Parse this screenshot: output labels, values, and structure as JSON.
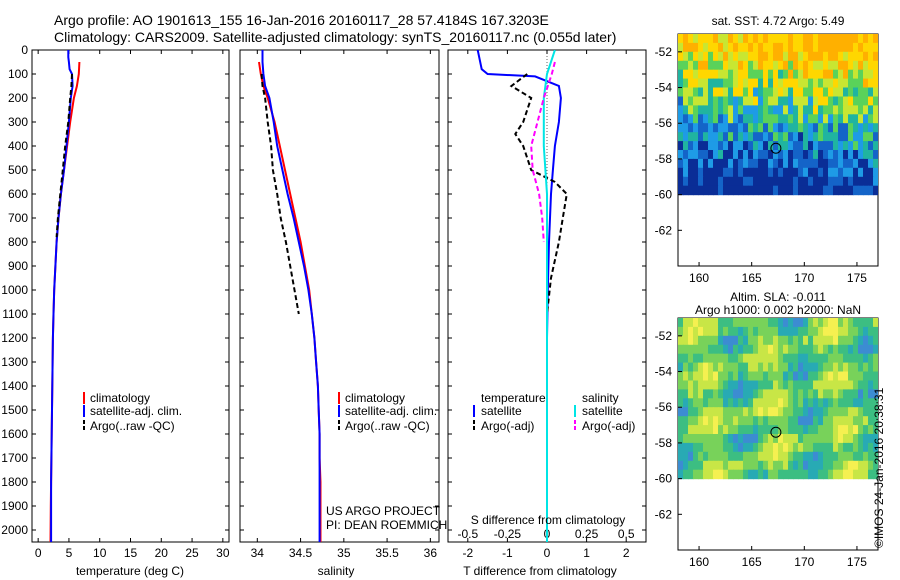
{
  "header": {
    "line1": "Argo profile: AO 1901613_155 16-Jan-2016 20160117_28 57.4184S 167.3203E",
    "line2": "Climatology: CARS2009. Satellite-adjusted climatology: synTS_20160117.nc (0.055d later)"
  },
  "stamp": "©IMOS 24-Jan-2016 20:38:31",
  "colors": {
    "climatology": "#ff0000",
    "satellite": "#0000ff",
    "argo": "#000000",
    "salinity_satellite": "#00e5e5",
    "salinity_argo": "#ff00ff"
  },
  "chart_data": [
    {
      "type": "line",
      "id": "temperature",
      "xlabel": "temperature (deg C)",
      "ylabel": "",
      "xlim": [
        -1,
        31
      ],
      "ylim": [
        2050,
        0
      ],
      "xticks": [
        0,
        5,
        10,
        15,
        20,
        25,
        30
      ],
      "yticks": [
        0,
        100,
        200,
        300,
        400,
        500,
        600,
        700,
        800,
        900,
        1000,
        1100,
        1200,
        1300,
        1400,
        1500,
        1600,
        1700,
        1800,
        1900,
        2000
      ],
      "legend": [
        "climatology",
        "satellite-adj. clim.",
        "Argo(..raw -QC)"
      ],
      "legend_placement": "lower-right",
      "series": [
        {
          "name": "climatology",
          "color": "#ff0000",
          "x": [
            6.7,
            6.6,
            6.3,
            5.8,
            5.2,
            4.7,
            4.2,
            3.7,
            3.3,
            3.0,
            2.8,
            2.6,
            2.5,
            2.4,
            2.35,
            2.3,
            2.25,
            2.2,
            2.15,
            2.1,
            2.05,
            2.0
          ],
          "y": [
            50,
            100,
            150,
            200,
            300,
            400,
            500,
            600,
            700,
            800,
            900,
            1000,
            1100,
            1200,
            1300,
            1400,
            1500,
            1600,
            1700,
            1800,
            1900,
            2050
          ]
        },
        {
          "name": "satellite-adj. clim.",
          "color": "#0000ff",
          "x": [
            4.9,
            4.9,
            5.0,
            5.1,
            5.5,
            5.6,
            5.3,
            5.0,
            4.6,
            4.2,
            3.7,
            3.3,
            3.0,
            2.8,
            2.6,
            2.5,
            2.4,
            2.35,
            2.3,
            2.25,
            2.2,
            2.15,
            2.1,
            2.1
          ],
          "y": [
            0,
            30,
            50,
            80,
            100,
            150,
            200,
            300,
            400,
            500,
            600,
            700,
            800,
            900,
            1000,
            1100,
            1200,
            1300,
            1400,
            1500,
            1600,
            1700,
            1800,
            2050
          ]
        },
        {
          "name": "Argo(..raw -QC)",
          "color": "#000000",
          "x": [
            5.5,
            5.4,
            5.2,
            4.9,
            4.4,
            4.0,
            3.6,
            3.2,
            3.0
          ],
          "y": [
            100,
            150,
            200,
            300,
            400,
            500,
            600,
            700,
            780
          ]
        }
      ]
    },
    {
      "type": "line",
      "id": "salinity",
      "xlabel": "salinity",
      "ylabel": "",
      "xlim": [
        33.8,
        36.1
      ],
      "ylim": [
        2050,
        0
      ],
      "xticks": [
        34,
        34.5,
        35,
        35.5,
        36
      ],
      "legend": [
        "climatology",
        "satellite-adj. clim.",
        "Argo(..raw -QC)"
      ],
      "legend_placement": "lower-right",
      "annotation": [
        "US ARGO PROJECT",
        "PI: DEAN ROEMMICH"
      ],
      "series": [
        {
          "name": "climatology",
          "color": "#ff0000",
          "x": [
            34.02,
            34.04,
            34.07,
            34.12,
            34.2,
            34.26,
            34.32,
            34.38,
            34.44,
            34.5,
            34.55,
            34.6,
            34.63,
            34.66,
            34.68,
            34.7,
            34.71,
            34.72,
            34.72,
            34.73,
            34.73
          ],
          "y": [
            50,
            100,
            150,
            200,
            300,
            400,
            500,
            600,
            700,
            800,
            900,
            1000,
            1100,
            1200,
            1300,
            1400,
            1500,
            1600,
            1700,
            1800,
            2050
          ]
        },
        {
          "name": "satellite-adj. clim.",
          "color": "#0000ff",
          "x": [
            34.06,
            34.06,
            34.07,
            34.09,
            34.14,
            34.19,
            34.23,
            34.29,
            34.35,
            34.42,
            34.48,
            34.54,
            34.59,
            34.63,
            34.66,
            34.68,
            34.7,
            34.71,
            34.72,
            34.72,
            34.72
          ],
          "y": [
            0,
            50,
            100,
            150,
            200,
            300,
            400,
            500,
            600,
            700,
            800,
            900,
            1000,
            1100,
            1200,
            1300,
            1400,
            1500,
            1600,
            1800,
            2050
          ]
        },
        {
          "name": "Argo(..raw -QC)",
          "color": "#000000",
          "x": [
            34.05,
            34.06,
            34.09,
            34.12,
            34.16,
            34.18,
            34.23,
            34.27,
            34.33,
            34.38,
            34.43,
            34.48
          ],
          "y": [
            100,
            150,
            200,
            300,
            400,
            500,
            600,
            700,
            800,
            900,
            1000,
            1100
          ]
        }
      ]
    },
    {
      "type": "line",
      "id": "difference",
      "xlabel": "T difference from climatology",
      "xlabel2": "S difference from climatology",
      "xlim": [
        -2.5,
        2.5
      ],
      "ylim": [
        2050,
        0
      ],
      "xticks": [
        -2,
        -1,
        0,
        1,
        2
      ],
      "xticks2": [
        -0.5,
        -0.25,
        0,
        0.25,
        0.5
      ],
      "legend_temperature": {
        "title": "temperature",
        "items": [
          "satellite",
          "Argo(-adj)"
        ]
      },
      "legend_salinity": {
        "title": "salinity",
        "items": [
          "satellite",
          "Argo(-adj)"
        ]
      },
      "legend_placement": "lower-center",
      "series": [
        {
          "name": "temperature satellite",
          "color": "#0000ff",
          "x": [
            -1.75,
            -1.65,
            -1.5,
            -0.3,
            0.3,
            0.35,
            0.3,
            0.2,
            0.15,
            0.1,
            0.05,
            0.02,
            0.0,
            0.0,
            0.0
          ],
          "y": [
            0,
            80,
            100,
            110,
            150,
            200,
            300,
            400,
            500,
            600,
            800,
            1000,
            1200,
            1500,
            2050
          ]
        },
        {
          "name": "temperature Argo(-adj)",
          "color": "#000000",
          "x": [
            -0.5,
            -0.9,
            -0.4,
            -0.6,
            -0.8,
            -0.6,
            -0.4,
            0.2,
            0.5,
            0.4,
            0.3,
            0.1,
            0.0
          ],
          "y": [
            100,
            150,
            200,
            300,
            350,
            400,
            500,
            550,
            600,
            700,
            800,
            950,
            1100
          ]
        },
        {
          "name": "salinity satellite",
          "color": "#00e5e5",
          "x": [
            0.05,
            0.0,
            -0.02,
            -0.02,
            0.0,
            0.0,
            0.0,
            0.0,
            0.0
          ],
          "y": [
            0,
            100,
            200,
            400,
            600,
            900,
            1200,
            1600,
            2050
          ]
        },
        {
          "name": "salinity Argo(-adj)",
          "color": "#ff00ff",
          "x": [
            0.05,
            0.03,
            -0.02,
            -0.06,
            -0.1,
            -0.09,
            -0.05,
            -0.03,
            -0.02
          ],
          "y": [
            50,
            100,
            200,
            300,
            400,
            500,
            600,
            700,
            800
          ]
        }
      ]
    },
    {
      "type": "heatmap",
      "id": "sst-map",
      "title": "sat. SST: 4.72 Argo: 5.49",
      "xlim": [
        158,
        177
      ],
      "ylim": [
        -64,
        -51
      ],
      "xticks": [
        160,
        165,
        170,
        175
      ],
      "yticks": [
        -52,
        -54,
        -56,
        -58,
        -60,
        -62
      ],
      "marker": {
        "lon": 167.3,
        "lat": -57.4
      }
    },
    {
      "type": "heatmap",
      "id": "sla-map",
      "title": "Altim. SLA: -0.011",
      "subtitle": "Argo h1000: 0.002 h2000: NaN",
      "xlim": [
        158,
        177
      ],
      "ylim": [
        -64,
        -51
      ],
      "xticks": [
        160,
        165,
        170,
        175
      ],
      "yticks": [
        -52,
        -54,
        -56,
        -58,
        -60,
        -62
      ],
      "marker": {
        "lon": 167.3,
        "lat": -57.4
      }
    }
  ]
}
